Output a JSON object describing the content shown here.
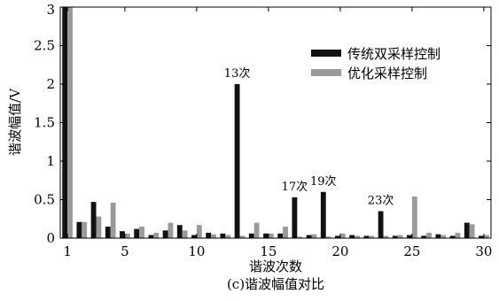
{
  "chart_data": {
    "type": "bar",
    "x": [
      1,
      2,
      3,
      4,
      5,
      6,
      7,
      8,
      9,
      10,
      11,
      12,
      13,
      14,
      15,
      16,
      17,
      18,
      19,
      20,
      21,
      22,
      23,
      24,
      25,
      26,
      27,
      28,
      29,
      30
    ],
    "series": [
      {
        "name": "传统双采样控制",
        "color": "#111111",
        "values": [
          3.0,
          0.21,
          0.47,
          0.15,
          0.09,
          0.12,
          0.04,
          0.1,
          0.17,
          0.04,
          0.07,
          0.06,
          2.0,
          0.06,
          0.06,
          0.06,
          0.53,
          0.04,
          0.6,
          0.03,
          0.04,
          0.03,
          0.35,
          0.03,
          0.04,
          0.03,
          0.05,
          0.03,
          0.2,
          0.03
        ]
      },
      {
        "name": "优化采样控制",
        "color": "#9a9a9a",
        "values": [
          3.0,
          0.21,
          0.28,
          0.46,
          0.06,
          0.15,
          0.07,
          0.2,
          0.1,
          0.17,
          0.05,
          0.04,
          0.03,
          0.2,
          0.06,
          0.15,
          0.02,
          0.05,
          0.02,
          0.06,
          0.03,
          0.03,
          0.03,
          0.04,
          0.54,
          0.07,
          0.04,
          0.07,
          0.18,
          0.04
        ]
      }
    ],
    "annotations": [
      {
        "text": "13次",
        "x": 13,
        "y": 2.0
      },
      {
        "text": "17次",
        "x": 17,
        "y": 0.53
      },
      {
        "text": "19次",
        "x": 19,
        "y": 0.6
      },
      {
        "text": "23次",
        "x": 23,
        "y": 0.35
      }
    ],
    "xlabel": "谐波次数",
    "ylabel": "谐波幅值/V",
    "caption": "(c)谐波幅值对比",
    "xticks": [
      1,
      5,
      10,
      15,
      20,
      25,
      30
    ],
    "yticks": [
      0,
      0.5,
      1,
      1.5,
      2,
      2.5,
      3
    ],
    "ytick_labels": [
      "0",
      "0.5",
      "1",
      "1.5",
      "2",
      "2.5",
      "3"
    ],
    "xlim": [
      0.5,
      30.5
    ],
    "ylim": [
      0,
      3
    ],
    "grid": false,
    "legend_position": "top-right"
  }
}
